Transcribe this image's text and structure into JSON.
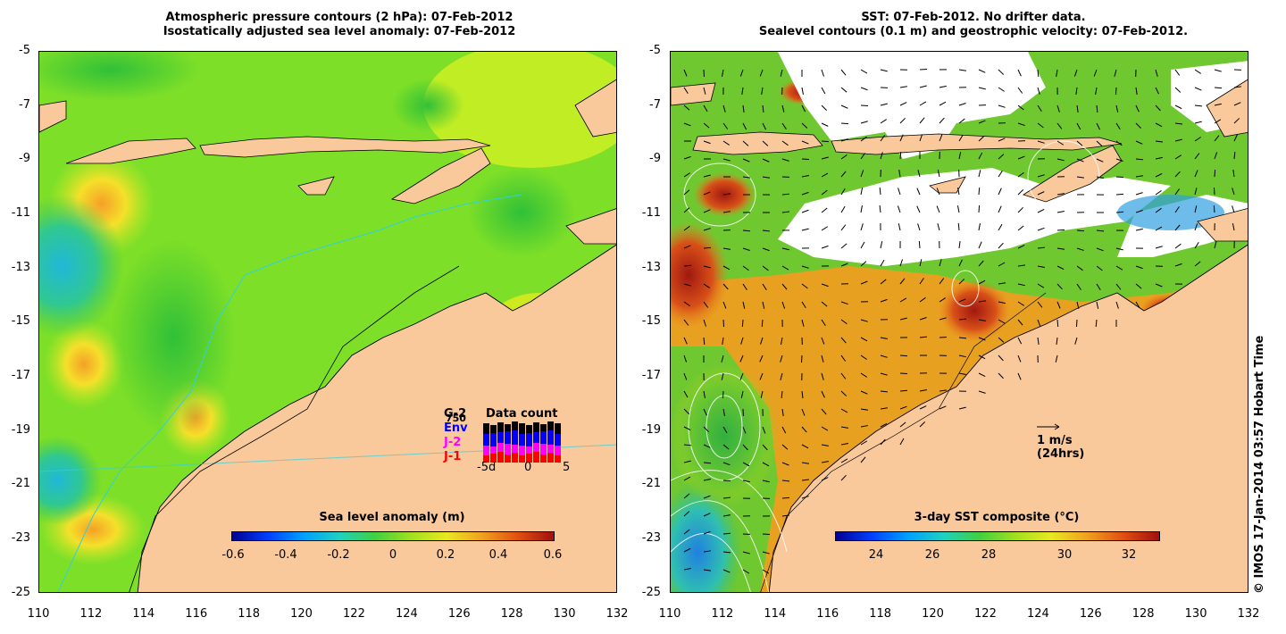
{
  "left_panel": {
    "title_line1": "Atmospheric pressure contours (2 hPa): 07-Feb-2012",
    "title_line2": "Isostatically adjusted sea level anomaly: 07-Feb-2012",
    "colorbar_label": "Sea level anomaly (m)",
    "colorbar_ticks": [
      "-0.6",
      "-0.4",
      "-0.2",
      "0",
      "0.2",
      "0.4",
      "0.6"
    ],
    "inset": {
      "title": "Data count",
      "top_label": "750",
      "labels": [
        "G-2",
        "Env",
        "J-2",
        "J-1"
      ],
      "label_colors": [
        "#000000",
        "#0000ff",
        "#ff00ff",
        "#ff0000"
      ],
      "x_ticks": [
        "-5d",
        "0",
        "5"
      ]
    }
  },
  "right_panel": {
    "title_line1": "SST: 07-Feb-2012. No drifter data.",
    "title_line2": "Sealevel contours (0.1 m) and geostrophic velocity: 07-Feb-2012.",
    "colorbar_label": "3-day SST composite (°C)",
    "colorbar_ticks": [
      "24",
      "26",
      "28",
      "30",
      "32"
    ],
    "vector_key_line1": "1 m/s",
    "vector_key_line2": "(24hrs)"
  },
  "y_ticks": [
    "-5",
    "-7",
    "-9",
    "-11",
    "-13",
    "-15",
    "-17",
    "-19",
    "-21",
    "-23",
    "-25"
  ],
  "x_ticks": [
    "110",
    "112",
    "114",
    "116",
    "118",
    "120",
    "122",
    "124",
    "126",
    "128",
    "130",
    "132"
  ],
  "credit": "© IMOS 17-Jan-2014 03:57 Hobart Time",
  "colors": {
    "land": "#f9c89b",
    "sla_base": "#7ddf28",
    "sst_warm": "#e8a020",
    "no_data": "#ffffff"
  }
}
